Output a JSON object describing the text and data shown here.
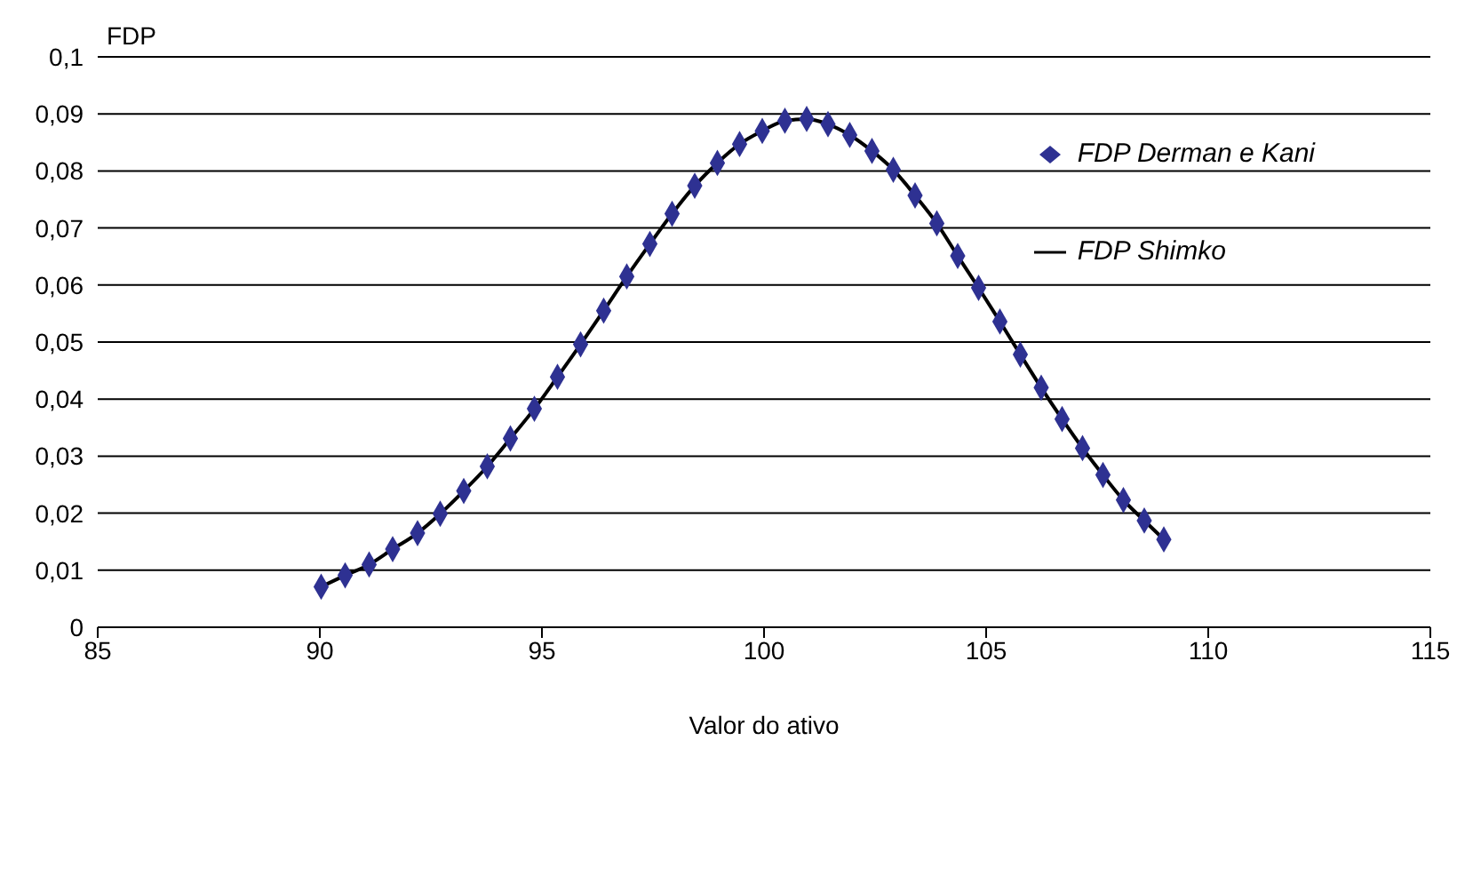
{
  "chart_data": {
    "type": "line",
    "xlabel": "Valor do ativo",
    "ylabel": "FDP",
    "xlim": [
      85,
      115
    ],
    "xticks": [
      85,
      90,
      95,
      100,
      105,
      110,
      115
    ],
    "ylim": [
      0,
      0.1
    ],
    "yticks": [
      0,
      {
        "value": 0.01,
        "label": "0,01"
      },
      {
        "value": 0.02,
        "label": "0,02"
      },
      {
        "value": 0.03,
        "label": "0,03"
      },
      {
        "value": 0.04,
        "label": "0,04"
      },
      {
        "value": 0.05,
        "label": "0,05"
      },
      {
        "value": 0.06,
        "label": "0,06"
      },
      {
        "value": 0.07,
        "label": "0,07"
      },
      {
        "value": 0.08,
        "label": "0,08"
      },
      {
        "value": 0.09,
        "label": "0,09"
      },
      {
        "value": 0.1,
        "label": "0,1"
      }
    ],
    "grid": "y",
    "legend": "top right",
    "series": [
      {
        "name": "FDP Derman e Kani",
        "type": "scatter",
        "marker": "diamond",
        "color": "#2e3192",
        "x": [
          90.03,
          90.57,
          91.11,
          91.64,
          92.2,
          92.71,
          93.24,
          93.77,
          94.29,
          94.83,
          95.35,
          95.87,
          96.39,
          96.91,
          97.43,
          97.93,
          98.44,
          98.95,
          99.45,
          99.96,
          100.47,
          100.96,
          101.44,
          101.93,
          102.43,
          102.91,
          103.4,
          103.89,
          104.36,
          104.83,
          105.31,
          105.77,
          106.24,
          106.71,
          107.17,
          107.63,
          108.09,
          108.56,
          109.0
        ],
        "values": [
          0.0071,
          0.0091,
          0.011,
          0.0137,
          0.0165,
          0.0199,
          0.0239,
          0.0282,
          0.0331,
          0.0383,
          0.0439,
          0.0496,
          0.0555,
          0.0615,
          0.0672,
          0.0725,
          0.0774,
          0.0814,
          0.0847,
          0.087,
          0.0888,
          0.0891,
          0.0882,
          0.0863,
          0.0835,
          0.0802,
          0.0757,
          0.0708,
          0.0651,
          0.0595,
          0.0536,
          0.0478,
          0.042,
          0.0365,
          0.0314,
          0.0267,
          0.0223,
          0.0187,
          0.0154
        ]
      },
      {
        "name": "FDP Shimko",
        "marker": "none",
        "line_style": "solid",
        "color": "#000000",
        "x": [
          90.03,
          90.57,
          91.11,
          91.64,
          92.2,
          92.71,
          93.24,
          93.77,
          94.29,
          94.83,
          95.35,
          95.87,
          96.39,
          96.91,
          97.43,
          97.93,
          98.44,
          98.95,
          99.45,
          99.96,
          100.47,
          100.96,
          101.44,
          101.93,
          102.43,
          102.91,
          103.4,
          103.89,
          104.36,
          104.83,
          105.31,
          105.77,
          106.24,
          106.71,
          107.17,
          107.63,
          108.09,
          108.56,
          109.0
        ],
        "values": [
          0.0071,
          0.0091,
          0.011,
          0.0137,
          0.0165,
          0.0199,
          0.0239,
          0.0282,
          0.0331,
          0.0383,
          0.0439,
          0.0496,
          0.0555,
          0.0615,
          0.0672,
          0.0725,
          0.0774,
          0.0814,
          0.0847,
          0.087,
          0.0888,
          0.0891,
          0.0882,
          0.0863,
          0.0835,
          0.0802,
          0.0757,
          0.0708,
          0.0651,
          0.0595,
          0.0536,
          0.0478,
          0.042,
          0.0365,
          0.0314,
          0.0267,
          0.0223,
          0.0187,
          0.0154
        ]
      }
    ]
  }
}
